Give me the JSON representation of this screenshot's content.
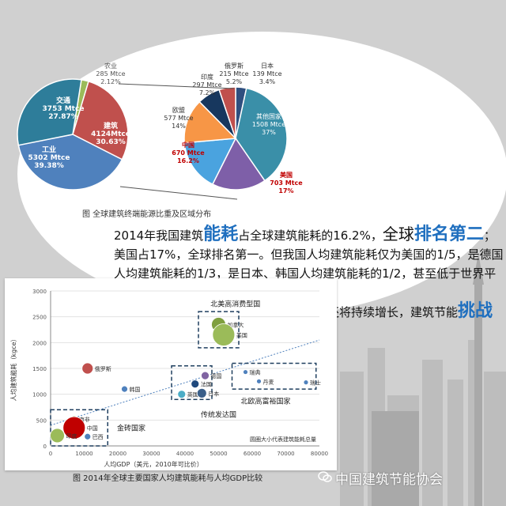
{
  "pie_caption": "图  全球建筑终端能源比重及区域分布",
  "scatter_caption": "图 2014年全球主要国家人均建筑能耗与人均GDP比较",
  "watermark": "中国建筑节能协会",
  "paragraph": {
    "p1_a": "2014年我国建筑",
    "p1_h1": "能耗",
    "p1_b": "占全球建筑能耗的16.2%，",
    "p1_c": "全球",
    "p1_h2": "排名第二",
    "p1_d": "；美国占17%，全球排名第一。但我国人均建筑能耗仅为美国的1/5，是德国人均建筑能耗的1/3，是日本、韩国人均建筑能耗的1/2，甚至低于世界平均水平。",
    "p2_a": "随着人民生活水平的提高，我国建筑能耗还将持续增长，建筑节能",
    "p2_h": "挑战巨大",
    "p2_b": "。"
  },
  "chart_data": [
    {
      "type": "pie",
      "title": "",
      "slices": [
        {
          "label": "农业",
          "value_label": "285 Mtce",
          "pct_label": "2.12%",
          "value": 285,
          "color": "#9bbb59"
        },
        {
          "label": "交通",
          "value_label": "3753 Mtce",
          "pct_label": "27.87%",
          "value": 3753,
          "color": "#c0504d"
        },
        {
          "label": "工业",
          "value_label": "5302 Mtce",
          "pct_label": "39.38%",
          "value": 5302,
          "color": "#4f81bd"
        },
        {
          "label": "建筑",
          "value_label": "4124Mtce",
          "pct_label": "30.63%",
          "value": 4124,
          "color": "#2e7d9a"
        }
      ]
    },
    {
      "type": "pie",
      "title": "",
      "slices": [
        {
          "label": "日本",
          "value_label": "139 Mtce",
          "pct_label": "3.4%",
          "value": 3.4,
          "color": "#2f4f7f"
        },
        {
          "label": "其他国家",
          "value_label": "1508 Mtce",
          "pct_label": "37%",
          "value": 37,
          "color": "#3a8fa8"
        },
        {
          "label": "美国",
          "value_label": "703 Mtce",
          "pct_label": "17%",
          "value": 17,
          "color": "#7e5fa8"
        },
        {
          "label": "中国",
          "value_label": "670 Mtce",
          "pct_label": "16.2%",
          "value": 16.2,
          "color": "#4aa3df"
        },
        {
          "label": "欧盟",
          "value_label": "577 Mtce",
          "pct_label": "14%",
          "value": 14,
          "color": "#f79646"
        },
        {
          "label": "印度",
          "value_label": "297 Mtce",
          "pct_label": "7.2%",
          "value": 7.2,
          "color": "#17375e"
        },
        {
          "label": "俄罗斯",
          "value_label": "215 Mtce",
          "pct_label": "5.2%",
          "value": 5.2,
          "color": "#c0504d"
        }
      ]
    },
    {
      "type": "scatter",
      "title": "",
      "xlabel": "人均GDP（美元，2010年可比价）",
      "ylabel": "人均建筑能耗（kgce）",
      "xlim": [
        0,
        80000
      ],
      "ylim": [
        0,
        3000
      ],
      "xticks": [
        "0",
        "10000",
        "20000",
        "30000",
        "40000",
        "50000",
        "60000",
        "70000",
        "80000"
      ],
      "yticks": [
        "0",
        "500",
        "1000",
        "1500",
        "2000",
        "2500",
        "3000"
      ],
      "note": "圆圈大小代表建筑能耗总量",
      "group_labels": [
        {
          "text": "北美高消费型国",
          "x": 55000,
          "y": 2700
        },
        {
          "text": "北欧高富裕国家",
          "x": 64000,
          "y": 820
        },
        {
          "text": "传统发达国",
          "x": 50000,
          "y": 560
        },
        {
          "text": "金砖国家",
          "x": 24000,
          "y": 300
        }
      ],
      "points": [
        {
          "label": "加拿大",
          "x": 50000,
          "y": 2350,
          "size": 9,
          "color": "#7f9f3f"
        },
        {
          "label": "美国",
          "x": 51500,
          "y": 2150,
          "size": 14,
          "color": "#9bbb59"
        },
        {
          "label": "俄罗斯",
          "x": 11000,
          "y": 1500,
          "size": 7,
          "color": "#c0504d"
        },
        {
          "label": "韩国",
          "x": 22000,
          "y": 1100,
          "size": 4,
          "color": "#4f81bd"
        },
        {
          "label": "德国",
          "x": 46000,
          "y": 1360,
          "size": 5,
          "color": "#8064a2"
        },
        {
          "label": "法国",
          "x": 43000,
          "y": 1200,
          "size": 5,
          "color": "#1f497d"
        },
        {
          "label": "英国",
          "x": 39000,
          "y": 1000,
          "size": 5,
          "color": "#4bacc6"
        },
        {
          "label": "日本",
          "x": 45000,
          "y": 1020,
          "size": 6,
          "color": "#3a5f8a"
        },
        {
          "label": "瑞典",
          "x": 58000,
          "y": 1430,
          "size": 3,
          "color": "#4f81bd"
        },
        {
          "label": "丹麦",
          "x": 62000,
          "y": 1250,
          "size": 3,
          "color": "#4f81bd"
        },
        {
          "label": "瑞士",
          "x": 76000,
          "y": 1230,
          "size": 3,
          "color": "#4f81bd"
        },
        {
          "label": "南非",
          "x": 7000,
          "y": 520,
          "size": 4,
          "color": "#7f9f3f"
        },
        {
          "label": "中国",
          "x": 7000,
          "y": 350,
          "size": 14,
          "color": "#c00000"
        },
        {
          "label": "印度",
          "x": 2000,
          "y": 200,
          "size": 9,
          "color": "#9bbb59"
        },
        {
          "label": "巴西",
          "x": 11000,
          "y": 180,
          "size": 4,
          "color": "#4f81bd"
        }
      ]
    }
  ]
}
